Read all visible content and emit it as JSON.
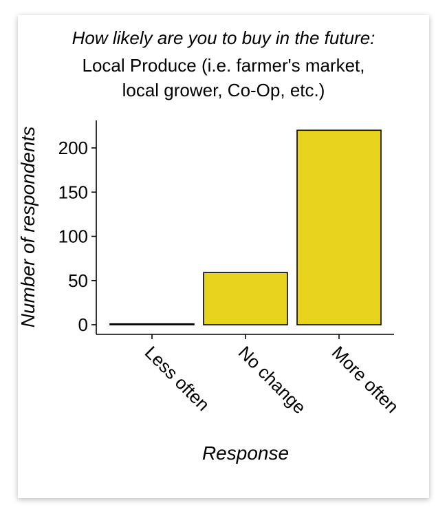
{
  "chart_data": {
    "type": "bar",
    "title": "How likely are you to buy in the future:",
    "subtitle_lines": [
      "Local Produce (i.e. farmer's market,",
      "local grower, Co-Op, etc.)"
    ],
    "xlabel": "Response",
    "ylabel": "Number of respondents",
    "categories": [
      "Less often",
      "No change",
      "More often"
    ],
    "values": [
      1,
      59,
      220
    ],
    "ylim": [
      0,
      230
    ],
    "yticks": [
      0,
      50,
      100,
      150,
      200
    ],
    "bar_color": "#e8d31f",
    "bar_outline": "#000000",
    "grid": false
  }
}
